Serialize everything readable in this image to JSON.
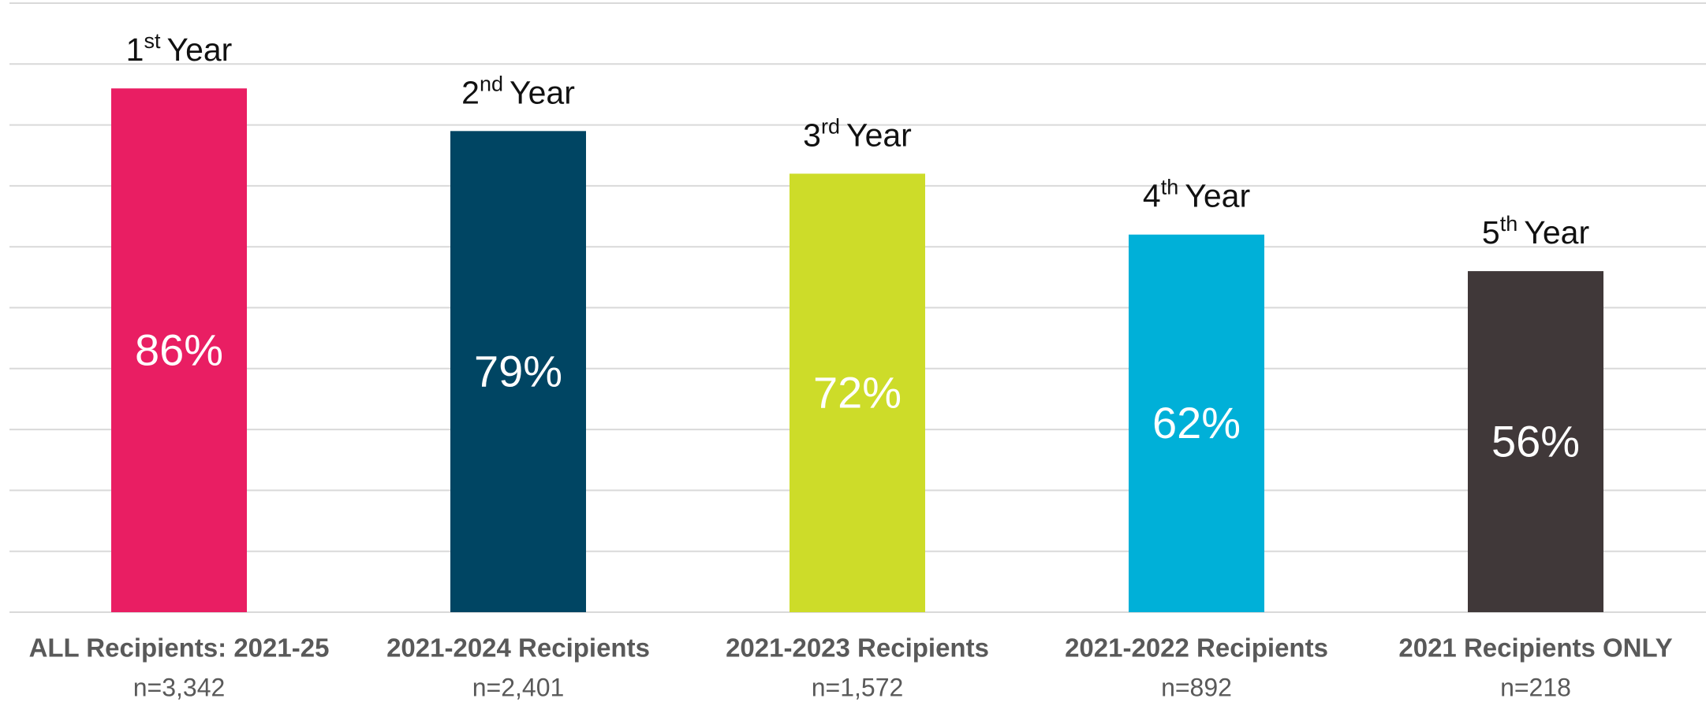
{
  "chart_data": {
    "type": "bar",
    "categories": [
      "ALL Recipients: 2021-25",
      "2021-2024 Recipients",
      "2021-2023 Recipients",
      "2021-2022 Recipients",
      "2021 Recipients ONLY"
    ],
    "sublabels": [
      "n=3,342",
      "n=2,401",
      "n=1,572",
      "n=892",
      "n=218"
    ],
    "bar_labels": [
      {
        "ordinal": "1",
        "suffix": "st",
        "text": "Year"
      },
      {
        "ordinal": "2",
        "suffix": "nd",
        "text": "Year"
      },
      {
        "ordinal": "3",
        "suffix": "rd",
        "text": "Year"
      },
      {
        "ordinal": "4",
        "suffix": "th",
        "text": "Year"
      },
      {
        "ordinal": "5",
        "suffix": "th",
        "text": "Year"
      }
    ],
    "values": [
      86,
      79,
      72,
      62,
      56
    ],
    "value_labels": [
      "86%",
      "79%",
      "72%",
      "62%",
      "56%"
    ],
    "colors": [
      "#e91e63",
      "#004563",
      "#cddc29",
      "#00b0d8",
      "#403839"
    ],
    "ylim": [
      0,
      100
    ],
    "yticks": [
      0,
      10,
      20,
      30,
      40,
      50,
      60,
      70,
      80,
      90,
      100
    ],
    "grid": true
  }
}
